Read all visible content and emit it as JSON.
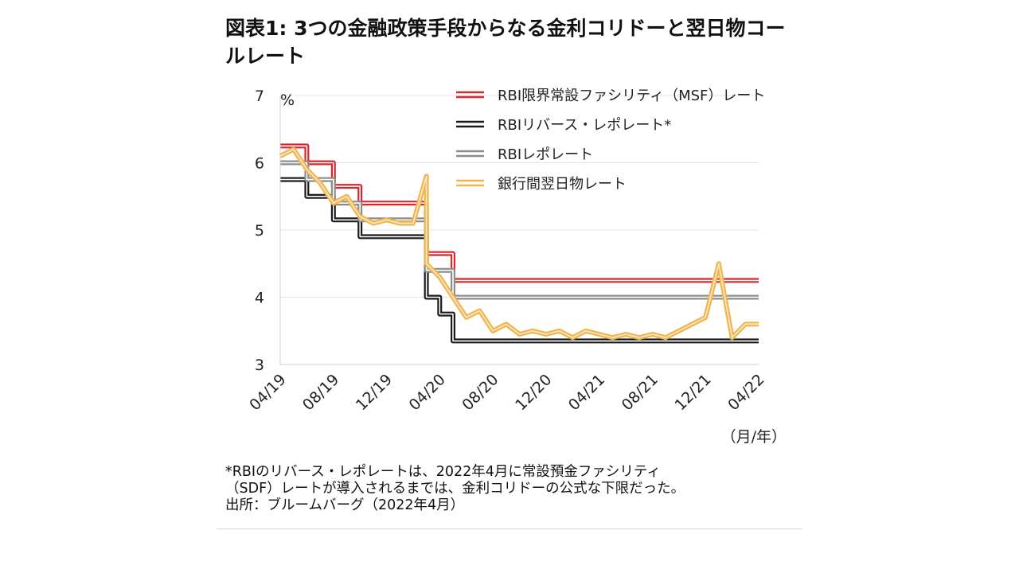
{
  "title": "図表1: 3つの金融政策手段からなる金利コリドーと翌日物コールレート",
  "notes": [
    "*RBIのリバース・レポレートは、2022年4月に常設預金ファシリティ",
    "（SDF）レートが導入されるまでは、金利コリドーの公式な下限だった。",
    "出所：ブルームバーグ（2022年4月）"
  ],
  "colors": {
    "msf": "#d7262c",
    "reverse_repo": "#1a1a1a",
    "repo": "#8c8c8c",
    "call_rate": "#f0b54d",
    "grid": "#e6e6e6"
  },
  "chart_data": {
    "type": "line",
    "title": "",
    "ylabel": "%",
    "xlabel": "（月/年）",
    "ylim": [
      3,
      7
    ],
    "yticks": [
      3,
      4,
      5,
      6,
      7
    ],
    "x_tick_labels": [
      "04/19",
      "08/19",
      "12/19",
      "04/20",
      "08/20",
      "12/20",
      "04/21",
      "08/21",
      "12/21",
      "04/22"
    ],
    "x_range": [
      "2019-04",
      "2022-04"
    ],
    "grid": "horizontal",
    "legend_position": "top-right",
    "series": [
      {
        "name": "RBI限界常設ファシリティ（MSF）レート",
        "style": "double",
        "step": true,
        "points": [
          [
            "2019-04",
            6.25
          ],
          [
            "2019-06",
            6.0
          ],
          [
            "2019-08",
            5.65
          ],
          [
            "2019-10",
            5.4
          ],
          [
            "2020-03",
            4.65
          ],
          [
            "2020-05",
            4.25
          ],
          [
            "2022-04",
            4.25
          ]
        ]
      },
      {
        "name": "RBIリバース・レポレート*",
        "style": "double",
        "step": true,
        "points": [
          [
            "2019-04",
            5.75
          ],
          [
            "2019-06",
            5.5
          ],
          [
            "2019-08",
            5.15
          ],
          [
            "2019-10",
            4.9
          ],
          [
            "2020-03",
            4.0
          ],
          [
            "2020-04",
            3.75
          ],
          [
            "2020-05",
            3.35
          ],
          [
            "2022-04",
            3.35
          ]
        ]
      },
      {
        "name": "RBIレポレート",
        "style": "double",
        "step": true,
        "points": [
          [
            "2019-04",
            6.0
          ],
          [
            "2019-06",
            5.75
          ],
          [
            "2019-08",
            5.4
          ],
          [
            "2019-10",
            5.15
          ],
          [
            "2020-03",
            4.4
          ],
          [
            "2020-05",
            4.0
          ],
          [
            "2022-04",
            4.0
          ]
        ]
      },
      {
        "name": "銀行間翌日物レート",
        "style": "double",
        "step": false,
        "points": [
          [
            "2019-04",
            6.1
          ],
          [
            "2019-05",
            6.2
          ],
          [
            "2019-06",
            5.9
          ],
          [
            "2019-07",
            5.7
          ],
          [
            "2019-08",
            5.4
          ],
          [
            "2019-09",
            5.5
          ],
          [
            "2019-10",
            5.2
          ],
          [
            "2019-11",
            5.1
          ],
          [
            "2019-12",
            5.15
          ],
          [
            "2020-01",
            5.1
          ],
          [
            "2020-02",
            5.1
          ],
          [
            "2020-03",
            5.8
          ],
          [
            "2020-03",
            4.5
          ],
          [
            "2020-04",
            4.3
          ],
          [
            "2020-05",
            4.0
          ],
          [
            "2020-06",
            3.7
          ],
          [
            "2020-07",
            3.8
          ],
          [
            "2020-08",
            3.5
          ],
          [
            "2020-09",
            3.6
          ],
          [
            "2020-10",
            3.45
          ],
          [
            "2020-11",
            3.5
          ],
          [
            "2020-12",
            3.45
          ],
          [
            "2021-01",
            3.5
          ],
          [
            "2021-02",
            3.4
          ],
          [
            "2021-03",
            3.5
          ],
          [
            "2021-04",
            3.45
          ],
          [
            "2021-05",
            3.4
          ],
          [
            "2021-06",
            3.45
          ],
          [
            "2021-07",
            3.4
          ],
          [
            "2021-08",
            3.45
          ],
          [
            "2021-09",
            3.4
          ],
          [
            "2021-10",
            3.5
          ],
          [
            "2021-11",
            3.6
          ],
          [
            "2021-12",
            3.7
          ],
          [
            "2022-01",
            4.5
          ],
          [
            "2022-02",
            3.4
          ],
          [
            "2022-03",
            3.6
          ],
          [
            "2022-04",
            3.6
          ]
        ]
      }
    ]
  }
}
